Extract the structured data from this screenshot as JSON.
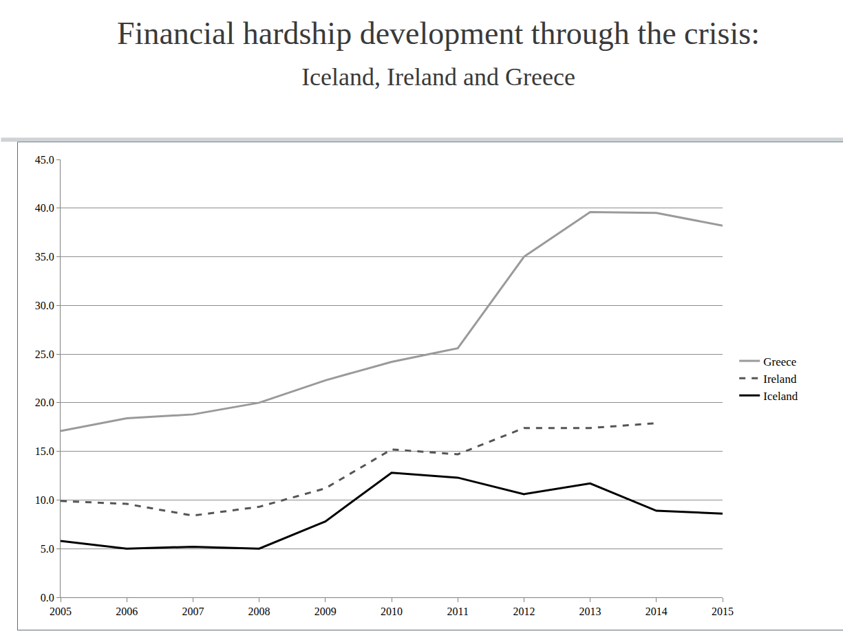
{
  "chart_data": {
    "type": "line",
    "title": "Financial hardship development through the crisis:",
    "subtitle": "Iceland, Ireland and Greece",
    "categories": [
      "2005",
      "2006",
      "2007",
      "2008",
      "2009",
      "2010",
      "2011",
      "2012",
      "2013",
      "2014",
      "2015"
    ],
    "series": [
      {
        "name": "Greece",
        "color": "#9a9a9a",
        "line_style": "solid",
        "values": [
          17.1,
          18.4,
          18.8,
          20.0,
          22.3,
          24.2,
          25.6,
          35.0,
          39.6,
          39.5,
          38.2
        ]
      },
      {
        "name": "Ireland",
        "color": "#555555",
        "line_style": "dashed",
        "values": [
          9.9,
          9.6,
          8.4,
          9.3,
          11.2,
          15.2,
          14.7,
          17.4,
          17.4,
          17.9,
          null
        ]
      },
      {
        "name": "Iceland",
        "color": "#000000",
        "line_style": "solid",
        "values": [
          5.8,
          5.0,
          5.2,
          5.0,
          7.8,
          12.8,
          12.3,
          10.6,
          11.7,
          8.9,
          8.6
        ]
      }
    ],
    "ylim": [
      0,
      45
    ],
    "yticks": [
      {
        "value": 0,
        "label": "0.0"
      },
      {
        "value": 5,
        "label": "5.0"
      },
      {
        "value": 10,
        "label": "10.0"
      },
      {
        "value": 15,
        "label": "15.0"
      },
      {
        "value": 20,
        "label": "20.0"
      },
      {
        "value": 25,
        "label": "25.0"
      },
      {
        "value": 30,
        "label": "30.0"
      },
      {
        "value": 35,
        "label": "35.0"
      },
      {
        "value": 40,
        "label": "40.0"
      },
      {
        "value": 45,
        "label": "45.0"
      }
    ],
    "grid": true,
    "legend": "right"
  }
}
